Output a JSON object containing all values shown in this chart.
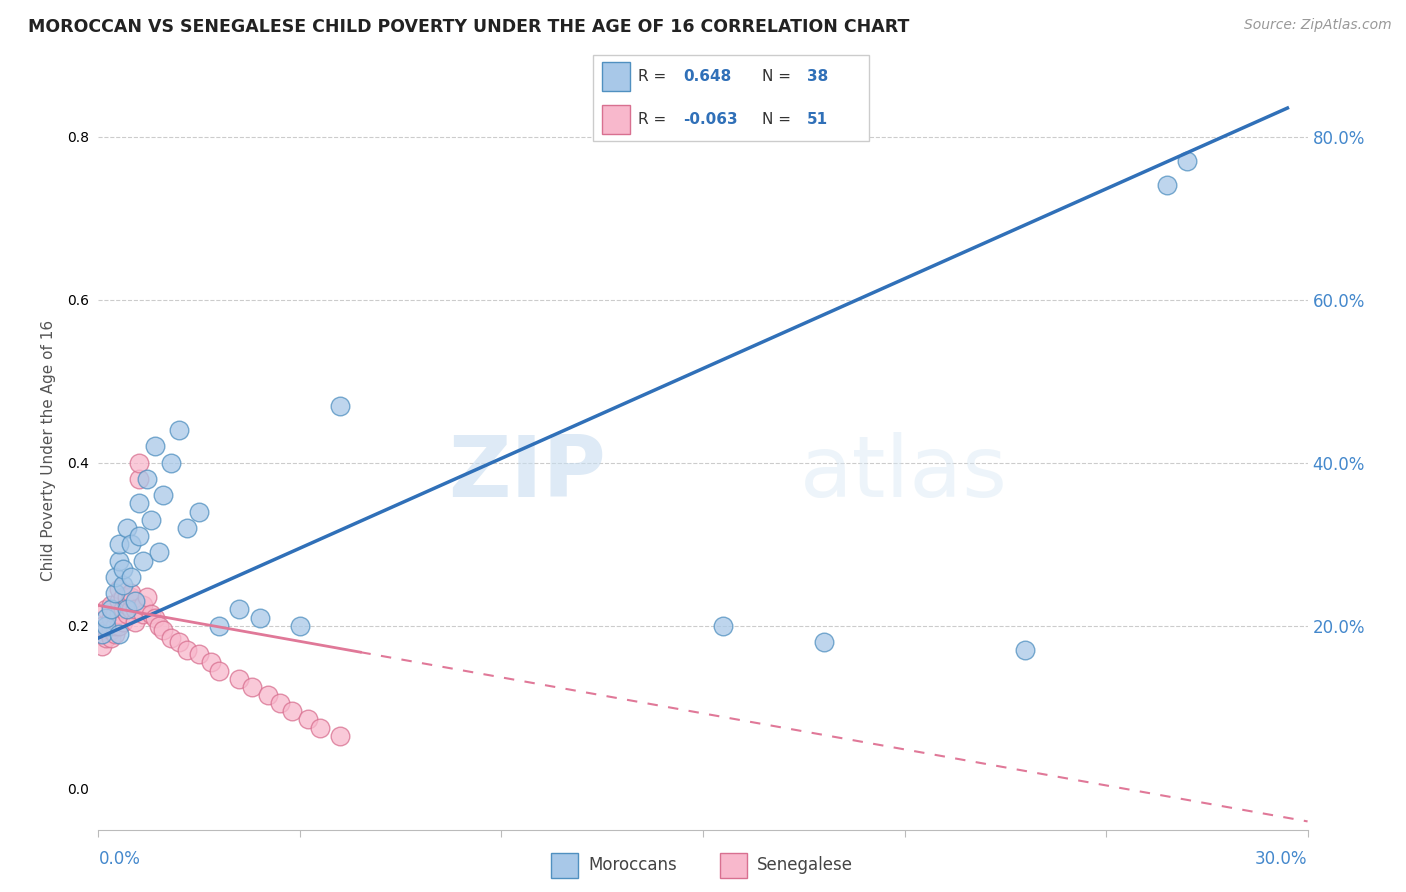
{
  "title": "MOROCCAN VS SENEGALESE CHILD POVERTY UNDER THE AGE OF 16 CORRELATION CHART",
  "source": "Source: ZipAtlas.com",
  "ylabel": "Child Poverty Under the Age of 16",
  "yaxis_labels": [
    "20.0%",
    "40.0%",
    "60.0%",
    "80.0%"
  ],
  "yaxis_values": [
    0.2,
    0.4,
    0.6,
    0.8
  ],
  "legend_moroccan_R": "0.648",
  "legend_moroccan_N": "38",
  "legend_senegalese_R": "-0.063",
  "legend_senegalese_N": "51",
  "moroccan_fill": "#a8c8e8",
  "moroccan_edge": "#5090c0",
  "senegalese_fill": "#f8b8cc",
  "senegalese_edge": "#d87090",
  "moroccan_line_color": "#3070b8",
  "senegalese_line_color": "#e07898",
  "watermark_zip": "ZIP",
  "watermark_atlas": "atlas",
  "moroccan_x": [
    0.001,
    0.002,
    0.002,
    0.003,
    0.004,
    0.004,
    0.005,
    0.005,
    0.005,
    0.006,
    0.006,
    0.007,
    0.007,
    0.008,
    0.008,
    0.009,
    0.01,
    0.01,
    0.011,
    0.012,
    0.013,
    0.014,
    0.015,
    0.016,
    0.018,
    0.02,
    0.022,
    0.025,
    0.03,
    0.035,
    0.04,
    0.05,
    0.06,
    0.155,
    0.18,
    0.23,
    0.265,
    0.27
  ],
  "moroccan_y": [
    0.19,
    0.2,
    0.21,
    0.22,
    0.24,
    0.26,
    0.28,
    0.3,
    0.19,
    0.25,
    0.27,
    0.22,
    0.32,
    0.3,
    0.26,
    0.23,
    0.35,
    0.31,
    0.28,
    0.38,
    0.33,
    0.42,
    0.29,
    0.36,
    0.4,
    0.44,
    0.32,
    0.34,
    0.2,
    0.22,
    0.21,
    0.2,
    0.47,
    0.2,
    0.18,
    0.17,
    0.74,
    0.77
  ],
  "senegalese_x": [
    0.001,
    0.001,
    0.001,
    0.002,
    0.002,
    0.002,
    0.003,
    0.003,
    0.003,
    0.003,
    0.004,
    0.004,
    0.004,
    0.005,
    0.005,
    0.005,
    0.005,
    0.006,
    0.006,
    0.006,
    0.007,
    0.007,
    0.007,
    0.008,
    0.008,
    0.008,
    0.009,
    0.009,
    0.01,
    0.01,
    0.011,
    0.011,
    0.012,
    0.013,
    0.014,
    0.015,
    0.016,
    0.018,
    0.02,
    0.022,
    0.025,
    0.028,
    0.03,
    0.035,
    0.038,
    0.042,
    0.045,
    0.048,
    0.052,
    0.055,
    0.06
  ],
  "senegalese_y": [
    0.175,
    0.19,
    0.2,
    0.185,
    0.195,
    0.22,
    0.185,
    0.195,
    0.21,
    0.225,
    0.19,
    0.2,
    0.215,
    0.2,
    0.215,
    0.23,
    0.245,
    0.205,
    0.22,
    0.235,
    0.215,
    0.225,
    0.235,
    0.22,
    0.235,
    0.24,
    0.205,
    0.22,
    0.38,
    0.4,
    0.215,
    0.225,
    0.235,
    0.215,
    0.21,
    0.2,
    0.195,
    0.185,
    0.18,
    0.17,
    0.165,
    0.155,
    0.145,
    0.135,
    0.125,
    0.115,
    0.105,
    0.095,
    0.085,
    0.075,
    0.065
  ],
  "xlim": [
    0.0,
    0.3
  ],
  "ylim": [
    -0.05,
    0.88
  ],
  "mor_line_x0": 0.0,
  "mor_line_y0": 0.185,
  "mor_line_x1": 0.295,
  "mor_line_y1": 0.835,
  "sen_line_x0": 0.0,
  "sen_line_y0": 0.225,
  "sen_line_x1": 0.3,
  "sen_line_y1": -0.04
}
